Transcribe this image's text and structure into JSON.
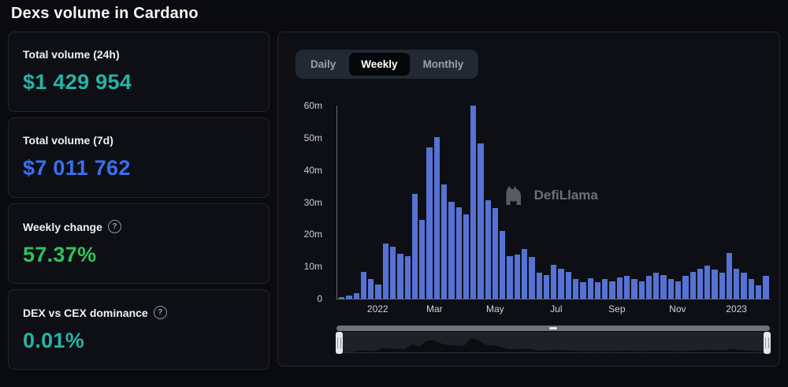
{
  "page": {
    "title": "Dexs volume in Cardano"
  },
  "stats": [
    {
      "label": "Total volume (24h)",
      "value": "$1 429 954",
      "color": "#26b3a6",
      "has_help": false
    },
    {
      "label": "Total volume (7d)",
      "value": "$7 011 762",
      "color": "#3a6ff2",
      "has_help": false
    },
    {
      "label": "Weekly change",
      "value": "57.37%",
      "color": "#33c159",
      "has_help": true
    },
    {
      "label": "DEX vs CEX dominance",
      "value": "0.01%",
      "color": "#26b3a6",
      "has_help": true
    }
  ],
  "icons": {
    "help_glyph": "?"
  },
  "tabs": [
    {
      "label": "Daily",
      "active": false
    },
    {
      "label": "Weekly",
      "active": true
    },
    {
      "label": "Monthly",
      "active": false
    }
  ],
  "watermark": {
    "text": "DefiLlama"
  },
  "chart_data": {
    "type": "bar",
    "title": "Dexs volume in Cardano (Weekly)",
    "xlabel": "",
    "ylabel": "",
    "unit": "millions USD",
    "ylim": [
      0,
      60
    ],
    "grid": false,
    "legend": "none",
    "bar_color": "#5672d4",
    "y_ticks": [
      "0",
      "10m",
      "20m",
      "30m",
      "40m",
      "50m",
      "60m"
    ],
    "x_ticks": [
      "2022",
      "Mar",
      "May",
      "Jul",
      "Sep",
      "Nov",
      "2023"
    ],
    "x_tick_pcts": [
      9.5,
      22.6,
      36.6,
      50.7,
      64.7,
      78.7,
      92.3
    ],
    "values": [
      0.4,
      0.9,
      1.6,
      8.3,
      6.2,
      4.4,
      17.2,
      16.1,
      14.0,
      13.2,
      32.6,
      24.5,
      47.0,
      50.2,
      35.4,
      30.2,
      28.3,
      26.1,
      60.0,
      48.3,
      30.6,
      28.2,
      21.0,
      13.2,
      13.6,
      15.4,
      13.1,
      8.2,
      7.4,
      10.6,
      9.2,
      8.4,
      6.1,
      5.2,
      6.3,
      5.1,
      6.2,
      5.4,
      6.6,
      7.2,
      6.1,
      5.3,
      7.1,
      8.2,
      7.3,
      6.2,
      5.4,
      7.2,
      8.3,
      9.4,
      10.2,
      9.1,
      8.2,
      14.2,
      9.3,
      8.1,
      6.1,
      4.2,
      7.0
    ]
  }
}
